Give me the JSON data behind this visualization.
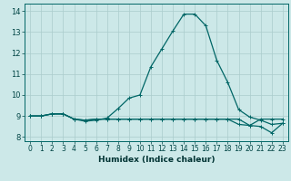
{
  "xlabel": "Humidex (Indice chaleur)",
  "ylabel": "",
  "background_color": "#cce8e8",
  "grid_color": "#aacccc",
  "line_color": "#006666",
  "xlim": [
    -0.5,
    23.5
  ],
  "ylim": [
    7.8,
    14.35
  ],
  "xticks": [
    0,
    1,
    2,
    3,
    4,
    5,
    6,
    7,
    8,
    9,
    10,
    11,
    12,
    13,
    14,
    15,
    16,
    17,
    18,
    19,
    20,
    21,
    22,
    23
  ],
  "yticks": [
    8,
    9,
    10,
    11,
    12,
    13,
    14
  ],
  "series": [
    [
      9.0,
      9.0,
      9.1,
      9.1,
      8.85,
      8.75,
      8.8,
      8.9,
      9.35,
      9.85,
      10.0,
      11.35,
      12.2,
      13.05,
      13.85,
      13.85,
      13.3,
      11.65,
      10.6,
      9.3,
      8.95,
      8.8,
      8.6,
      8.65
    ],
    [
      9.0,
      9.0,
      9.1,
      9.1,
      8.85,
      8.8,
      8.85,
      8.85,
      8.85,
      8.85,
      8.85,
      8.85,
      8.85,
      8.85,
      8.85,
      8.85,
      8.85,
      8.85,
      8.85,
      8.6,
      8.55,
      8.85,
      8.85,
      8.85
    ],
    [
      9.0,
      9.0,
      9.1,
      9.1,
      8.85,
      8.8,
      8.85,
      8.85,
      8.85,
      8.85,
      8.85,
      8.85,
      8.85,
      8.85,
      8.85,
      8.85,
      8.85,
      8.85,
      8.85,
      8.85,
      8.55,
      8.5,
      8.2,
      8.65
    ]
  ],
  "marker_size": 2.5,
  "line_width": 0.9,
  "xlabel_fontsize": 6.5,
  "tick_fontsize": 5.5,
  "ytick_fontsize": 6.0
}
